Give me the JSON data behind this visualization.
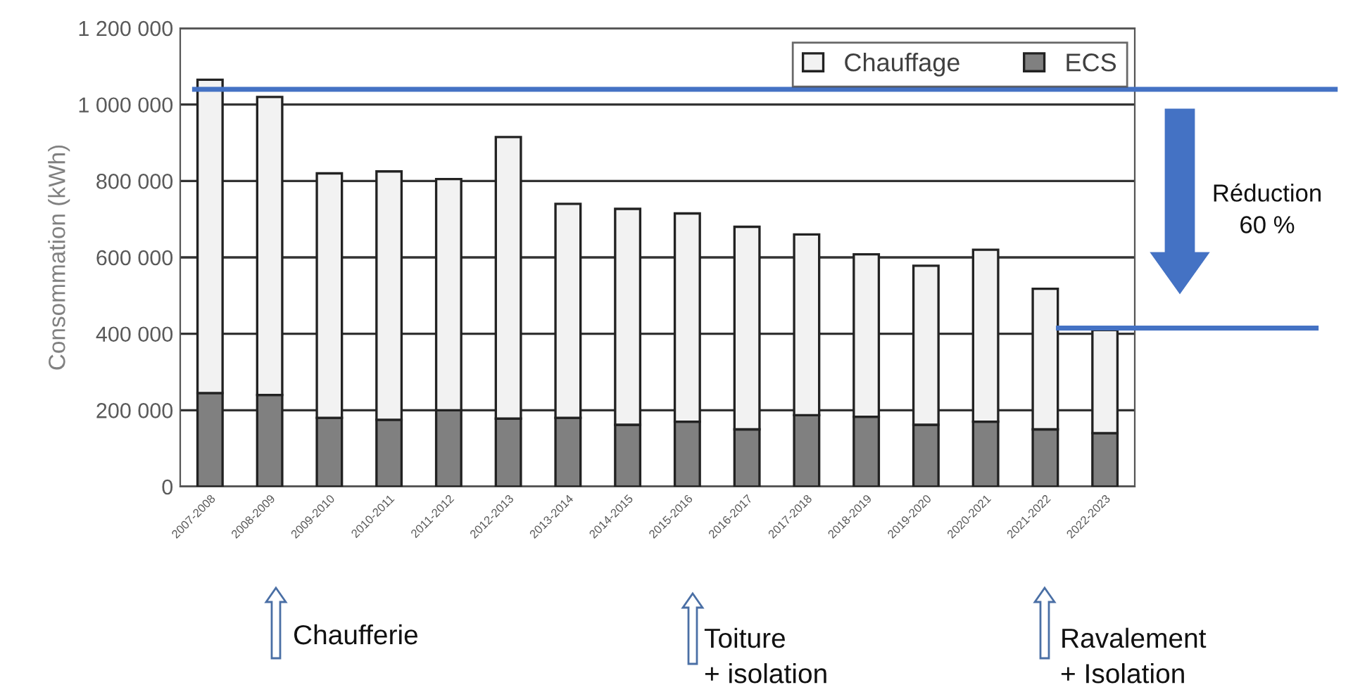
{
  "chart_data": {
    "type": "bar",
    "stacked": true,
    "ylabel": "Consommation (kWh)",
    "categories": [
      "2007-2008",
      "2008-2009",
      "2009-2010",
      "2010-2011",
      "2011-2012",
      "2012-2013",
      "2013-2014",
      "2014-2015",
      "2015-2016",
      "2016-2017",
      "2017-2018",
      "2018-2019",
      "2019-2020",
      "2020-2021",
      "2021-2022",
      "2022-2023"
    ],
    "series": [
      {
        "name": "ECS",
        "color": "#808080",
        "values": [
          245000,
          240000,
          180000,
          175000,
          200000,
          178000,
          180000,
          162000,
          170000,
          150000,
          187000,
          183000,
          162000,
          170000,
          150000,
          140000
        ]
      },
      {
        "name": "Chauffage",
        "color": "#f2f2f2",
        "values": [
          820000,
          780000,
          640000,
          650000,
          605000,
          737000,
          560000,
          565000,
          545000,
          530000,
          473000,
          425000,
          416000,
          450000,
          368000,
          270000
        ]
      }
    ],
    "ylim": [
      0,
      1200000
    ],
    "yticks": [
      {
        "value": 0,
        "label": "0"
      },
      {
        "value": 200000,
        "label": "200 000"
      },
      {
        "value": 400000,
        "label": "400 000"
      },
      {
        "value": 600000,
        "label": "600 000"
      },
      {
        "value": 800000,
        "label": "800 000"
      },
      {
        "value": 1000000,
        "label": "1 000 000"
      },
      {
        "value": 1200000,
        "label": "1 200 000"
      }
    ],
    "grid": "y",
    "legend": "top right",
    "ref_lines": [
      {
        "axis": "y",
        "value": 1040000,
        "color": "#4472c4"
      },
      {
        "axis": "y",
        "value": 415000,
        "color": "#4472c4"
      }
    ],
    "annotations": [
      "Réduction\n60 %",
      "Chaufferie",
      "Toiture\n+ isolation",
      "Ravalement\n+ Isolation"
    ]
  }
}
